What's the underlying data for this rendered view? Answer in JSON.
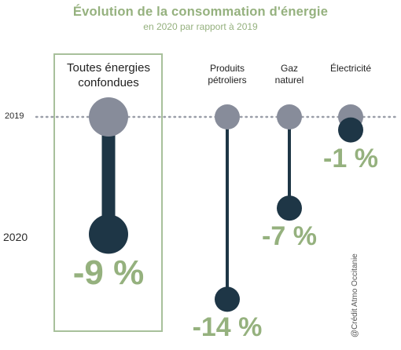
{
  "colors": {
    "accent_green": "#95b17e",
    "marker_2019": "#878c9a",
    "marker_2020": "#1e3646",
    "dotted_line": "#9a9ea8",
    "highlight_box": "#a8c09b"
  },
  "header": {
    "title": "Évolution de la consommation d'énergie",
    "subtitle": "en 2020 par rapport à 2019"
  },
  "years": {
    "start": "2019",
    "end": "2020"
  },
  "credit": "@Crédit Atmo Occitanie",
  "chart_data": {
    "type": "dumbbell",
    "title": "Évolution de la consommation d'énergie",
    "subtitle": "en 2020 par rapport à 2019",
    "unit": "%",
    "categories": [
      {
        "label_lines": [
          "Toutes énergies",
          "confondues"
        ],
        "change_pct": -9,
        "label": "-9 %",
        "highlighted": true
      },
      {
        "label_lines": [
          "Produits",
          "pétroliers"
        ],
        "change_pct": -14,
        "label": "-14 %",
        "highlighted": false
      },
      {
        "label_lines": [
          "Gaz",
          "naturel"
        ],
        "change_pct": -7,
        "label": "-7 %",
        "highlighted": false
      },
      {
        "label_lines": [
          "Électricité"
        ],
        "change_pct": -1,
        "label": "-1 %",
        "highlighted": false
      }
    ]
  }
}
